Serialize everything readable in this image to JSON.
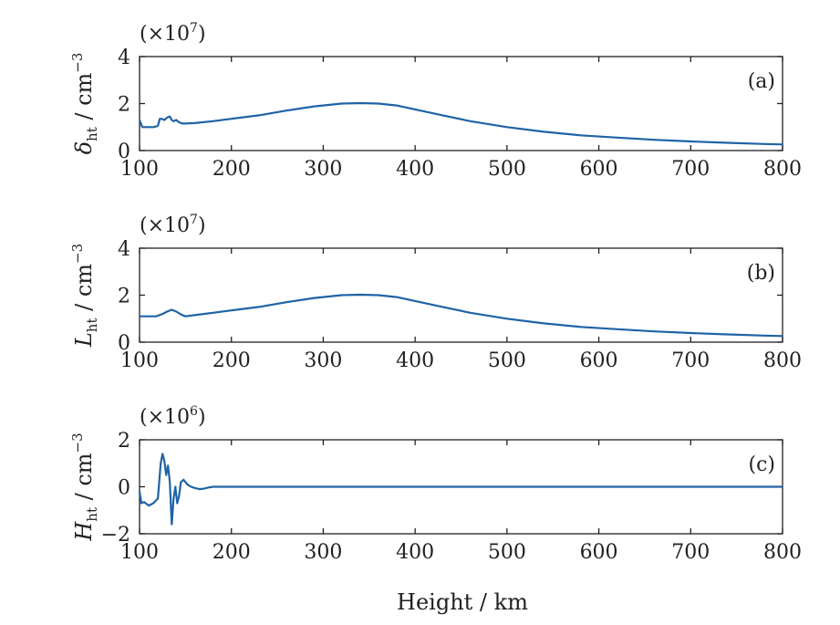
{
  "figure": {
    "xlabel": "Height / km",
    "line_color": "#1f63a6"
  },
  "chart_data": [
    {
      "type": "line",
      "tag": "(a)",
      "ylabel": {
        "sym": "δ",
        "sub": "ht",
        "unit": " / cm",
        "exp": "−3"
      },
      "multiplier": {
        "base": "(×10",
        "exp": "7",
        "close": ")"
      },
      "xlim": [
        100,
        800
      ],
      "ylim": [
        0,
        4
      ],
      "xticks": [
        100,
        200,
        300,
        400,
        500,
        600,
        700,
        800
      ],
      "yticks": [
        0,
        2,
        4
      ],
      "series": [
        {
          "x": [
            100,
            103,
            108,
            115,
            120,
            122,
            124,
            127,
            130,
            133,
            135,
            137,
            140,
            143,
            147,
            150,
            160,
            180,
            200,
            230,
            260,
            290,
            320,
            340,
            360,
            380,
            400,
            430,
            460,
            500,
            540,
            580,
            620,
            660,
            700,
            740,
            780,
            800
          ],
          "y": [
            1.3,
            1.0,
            1.0,
            1.0,
            1.05,
            1.35,
            1.35,
            1.3,
            1.4,
            1.45,
            1.3,
            1.25,
            1.3,
            1.2,
            1.15,
            1.15,
            1.17,
            1.25,
            1.35,
            1.5,
            1.7,
            1.88,
            2.0,
            2.02,
            2.0,
            1.92,
            1.75,
            1.5,
            1.25,
            1.0,
            0.8,
            0.65,
            0.55,
            0.46,
            0.39,
            0.33,
            0.28,
            0.26
          ]
        }
      ]
    },
    {
      "type": "line",
      "tag": "(b)",
      "ylabel": {
        "sym": "L",
        "sub": "ht",
        "unit": " / cm",
        "exp": "−3"
      },
      "multiplier": {
        "base": "(×10",
        "exp": "7",
        "close": ")"
      },
      "xlim": [
        100,
        800
      ],
      "ylim": [
        0,
        4
      ],
      "xticks": [
        100,
        200,
        300,
        400,
        500,
        600,
        700,
        800
      ],
      "yticks": [
        0,
        2,
        4
      ],
      "series": [
        {
          "x": [
            100,
            110,
            118,
            125,
            130,
            135,
            140,
            145,
            150,
            160,
            180,
            200,
            230,
            260,
            290,
            320,
            340,
            360,
            380,
            400,
            430,
            460,
            500,
            540,
            580,
            620,
            660,
            700,
            740,
            780,
            800
          ],
          "y": [
            1.1,
            1.1,
            1.1,
            1.2,
            1.3,
            1.38,
            1.3,
            1.18,
            1.1,
            1.15,
            1.25,
            1.35,
            1.5,
            1.7,
            1.88,
            2.0,
            2.02,
            2.0,
            1.92,
            1.75,
            1.5,
            1.25,
            1.0,
            0.8,
            0.65,
            0.55,
            0.46,
            0.39,
            0.33,
            0.28,
            0.26
          ]
        }
      ]
    },
    {
      "type": "line",
      "tag": "(c)",
      "ylabel": {
        "sym": "H",
        "sub": "ht",
        "unit": " / cm",
        "exp": "−3"
      },
      "multiplier": {
        "base": "(×10",
        "exp": "6",
        "close": ")"
      },
      "xlim": [
        100,
        800
      ],
      "ylim": [
        -2,
        2
      ],
      "xticks": [
        100,
        200,
        300,
        400,
        500,
        600,
        700,
        800
      ],
      "yticks": [
        -2,
        0,
        2
      ],
      "ytick_labels": [
        "−2",
        "0",
        "2"
      ],
      "series": [
        {
          "x": [
            100,
            102,
            105,
            110,
            115,
            120,
            123,
            125,
            127,
            129,
            131,
            133,
            135,
            137,
            139,
            141,
            143,
            145,
            148,
            152,
            156,
            160,
            165,
            170,
            175,
            180,
            200,
            300,
            400,
            500,
            600,
            700,
            800
          ],
          "y": [
            -0.2,
            -0.7,
            -0.65,
            -0.8,
            -0.7,
            -0.5,
            1.0,
            1.4,
            1.1,
            0.5,
            0.9,
            0.2,
            -1.6,
            -0.5,
            0.0,
            -0.7,
            -0.4,
            0.2,
            0.3,
            0.1,
            0.0,
            -0.05,
            -0.1,
            -0.08,
            -0.03,
            0.0,
            0.0,
            0.0,
            0.0,
            0.0,
            0.0,
            0.0,
            0.0
          ]
        }
      ]
    }
  ]
}
